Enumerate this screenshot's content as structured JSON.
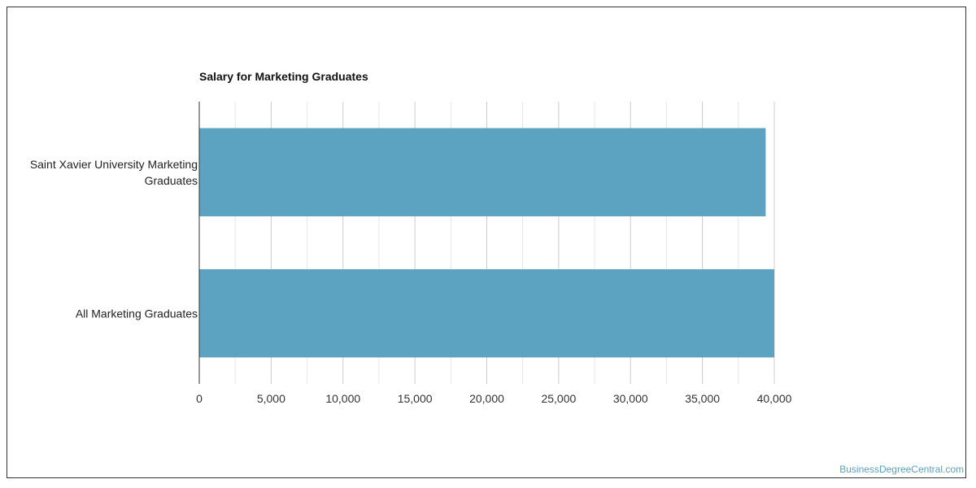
{
  "chart_data": {
    "type": "bar",
    "orientation": "horizontal",
    "title": "Salary for Marketing Graduates",
    "categories": [
      [
        "Saint Xavier University Marketing",
        "Graduates"
      ],
      [
        "All Marketing Graduates"
      ]
    ],
    "values": [
      39400,
      40000
    ],
    "xlim": [
      0,
      40000
    ],
    "x_ticks": [
      0,
      5000,
      10000,
      15000,
      20000,
      25000,
      30000,
      35000,
      40000
    ],
    "x_tick_labels": [
      "0",
      "5,000",
      "10,000",
      "15,000",
      "20,000",
      "25,000",
      "30,000",
      "35,000",
      "40,000"
    ],
    "bar_color": "#5ba3c0",
    "grid": true
  },
  "watermark": "BusinessDegreeCentral.com"
}
